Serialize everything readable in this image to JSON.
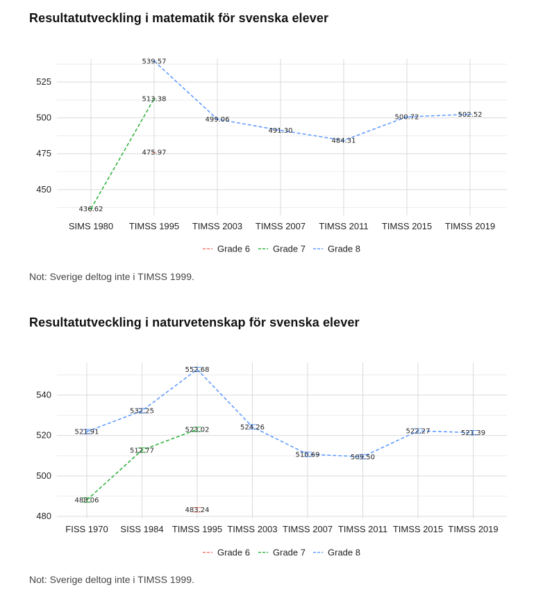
{
  "colors": {
    "grade6": "#f8766d",
    "grade7": "#33b340",
    "grade8": "#619cff",
    "grid": "#d9d9d9"
  },
  "chart1": {
    "title": "Resultatutveckling i matematik för svenska elever",
    "note": "Not: Sverige deltog inte i TIMSS 1999."
  },
  "chart2": {
    "title": "Resultatutveckling i naturvetenskap för svenska elever",
    "note": "Not: Sverige deltog inte i TIMSS 1999."
  },
  "chart_data": [
    {
      "type": "line",
      "title": "Resultatutveckling i matematik för svenska elever",
      "xlabel": "",
      "ylabel": "",
      "categories": [
        "SIMS 1980",
        "TIMSS 1995",
        "TIMSS 2003",
        "TIMSS 2007",
        "TIMSS 2011",
        "TIMSS 2015",
        "TIMSS 2019"
      ],
      "yticks": [
        450,
        475,
        500,
        525
      ],
      "ylim": [
        432,
        541
      ],
      "grid": true,
      "legend": "bottom",
      "series": [
        {
          "name": "Grade 6",
          "color_key": "grade6",
          "values": [
            null,
            475.97,
            null,
            null,
            null,
            null,
            null
          ],
          "labels": [
            null,
            "475.97",
            null,
            null,
            null,
            null,
            null
          ]
        },
        {
          "name": "Grade 7",
          "color_key": "grade7",
          "values": [
            436.62,
            513.38,
            null,
            null,
            null,
            null,
            null
          ],
          "labels": [
            "436.62",
            "513.38",
            null,
            null,
            null,
            null,
            null
          ]
        },
        {
          "name": "Grade 8",
          "color_key": "grade8",
          "values": [
            null,
            539.57,
            499.06,
            491.3,
            484.31,
            500.72,
            502.52
          ],
          "labels": [
            null,
            "539.57",
            "499.06",
            "491.30",
            "484.31",
            "500.72",
            "502.52"
          ]
        }
      ]
    },
    {
      "type": "line",
      "title": "Resultatutveckling i naturvetenskap för svenska elever",
      "xlabel": "",
      "ylabel": "",
      "categories": [
        "FISS 1970",
        "SISS 1984",
        "TIMSS 1995",
        "TIMSS 2003",
        "TIMSS 2007",
        "TIMSS 2011",
        "TIMSS 2015",
        "TIMSS 2019"
      ],
      "yticks": [
        480,
        500,
        520,
        540
      ],
      "ylim": [
        479,
        556
      ],
      "grid": true,
      "error_bars": true,
      "legend": "bottom",
      "series": [
        {
          "name": "Grade 6",
          "color_key": "grade6",
          "values": [
            null,
            null,
            483.24,
            null,
            null,
            null,
            null,
            null
          ],
          "labels": [
            null,
            null,
            "483.24",
            null,
            null,
            null,
            null,
            null
          ]
        },
        {
          "name": "Grade 7",
          "color_key": "grade7",
          "values": [
            488.06,
            512.77,
            523.02,
            null,
            null,
            null,
            null,
            null
          ],
          "labels": [
            "488.06",
            "512.77",
            "523.02",
            null,
            null,
            null,
            null,
            null
          ]
        },
        {
          "name": "Grade 8",
          "color_key": "grade8",
          "values": [
            521.91,
            532.25,
            552.68,
            524.26,
            510.69,
            509.5,
            522.27,
            521.39
          ],
          "labels": [
            "521.91",
            "532.25",
            "552.68",
            "524.26",
            "510.69",
            "509.50",
            "522.27",
            "521.39"
          ]
        }
      ]
    }
  ]
}
